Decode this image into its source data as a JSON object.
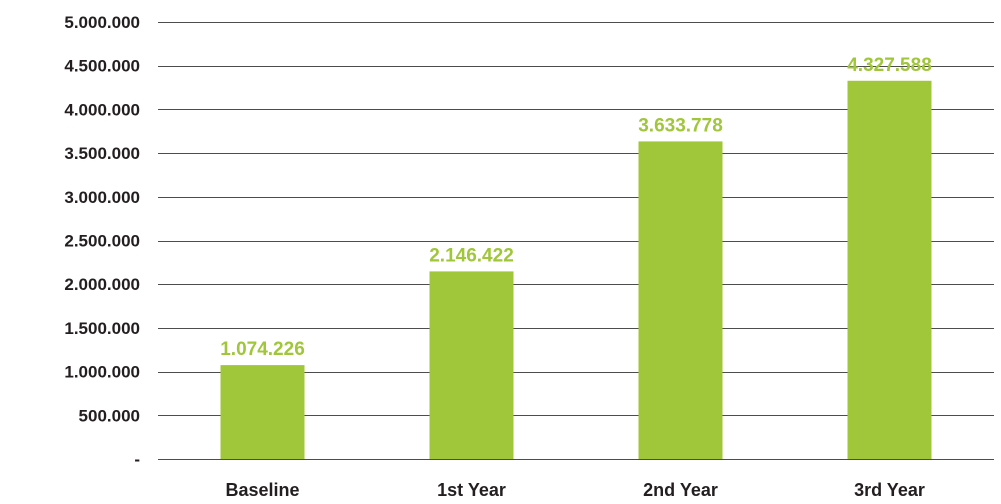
{
  "chart_data": {
    "type": "bar",
    "title": "",
    "xlabel": "",
    "ylabel": "",
    "categories": [
      "Baseline",
      "1st Year",
      "2nd Year",
      "3rd Year"
    ],
    "series": [
      {
        "values": [
          1074226,
          2146422,
          3633778,
          4327588
        ]
      }
    ],
    "data_labels": [
      "1.074.226",
      "2.146.422",
      "3.633.778",
      "4.327.588"
    ],
    "yticks": [
      0,
      500000,
      1000000,
      1500000,
      2000000,
      2500000,
      3000000,
      3500000,
      4000000,
      4500000,
      5000000
    ],
    "ytick_labels": [
      "-",
      "500.000",
      "1.000.000",
      "1.500.000",
      "2.000.000",
      "2.500.000",
      "3.000.000",
      "3.500.000",
      "4.000.000",
      "4.500.000",
      "5.000.000"
    ],
    "ylim": [
      0,
      5000000
    ],
    "grid": true,
    "legend": "none",
    "colors": {
      "bar": "#a0c63a",
      "label": "#a0c63a",
      "grid": "#4d4d4d",
      "text": "#231f20"
    }
  }
}
